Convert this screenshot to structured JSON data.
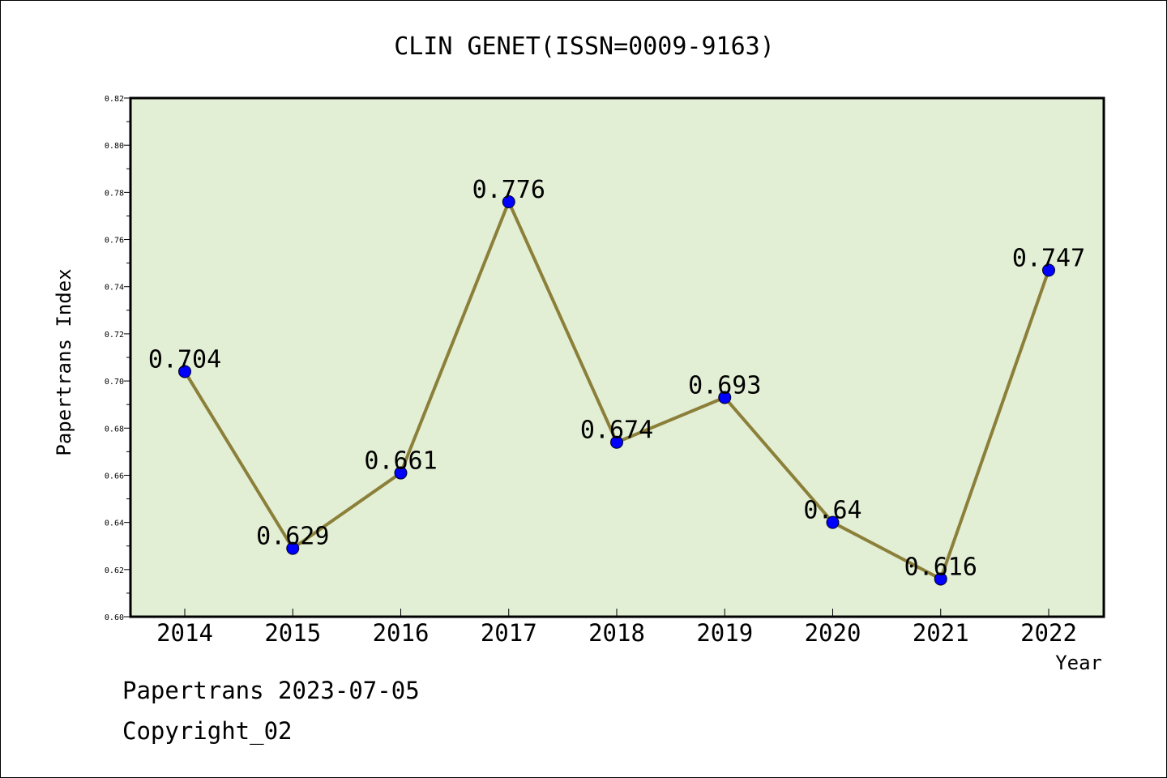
{
  "chart_data": {
    "type": "line",
    "title": "CLIN GENET(ISSN=0009-9163)",
    "xlabel": "Year",
    "ylabel": "Papertrans Index",
    "categories": [
      "2014",
      "2015",
      "2016",
      "2017",
      "2018",
      "2019",
      "2020",
      "2021",
      "2022"
    ],
    "values": [
      0.704,
      0.629,
      0.661,
      0.776,
      0.674,
      0.693,
      0.64,
      0.616,
      0.747
    ],
    "data_labels": [
      "0.704",
      "0.629",
      "0.661",
      "0.776",
      "0.674",
      "0.693",
      "0.64",
      "0.616",
      "0.747"
    ],
    "ylim": [
      0.6,
      0.82
    ],
    "yticks": [
      "0.60",
      "0.62",
      "0.64",
      "0.66",
      "0.68",
      "0.70",
      "0.72",
      "0.74",
      "0.76",
      "0.78",
      "0.80",
      "0.82"
    ],
    "grid": false,
    "colors": {
      "plot_background": "#e2efd4",
      "line": "#8b7f3a",
      "marker": "#0000ff"
    }
  },
  "footer": {
    "line1": "Papertrans 2023-07-05",
    "line2": "Copyright_02"
  }
}
